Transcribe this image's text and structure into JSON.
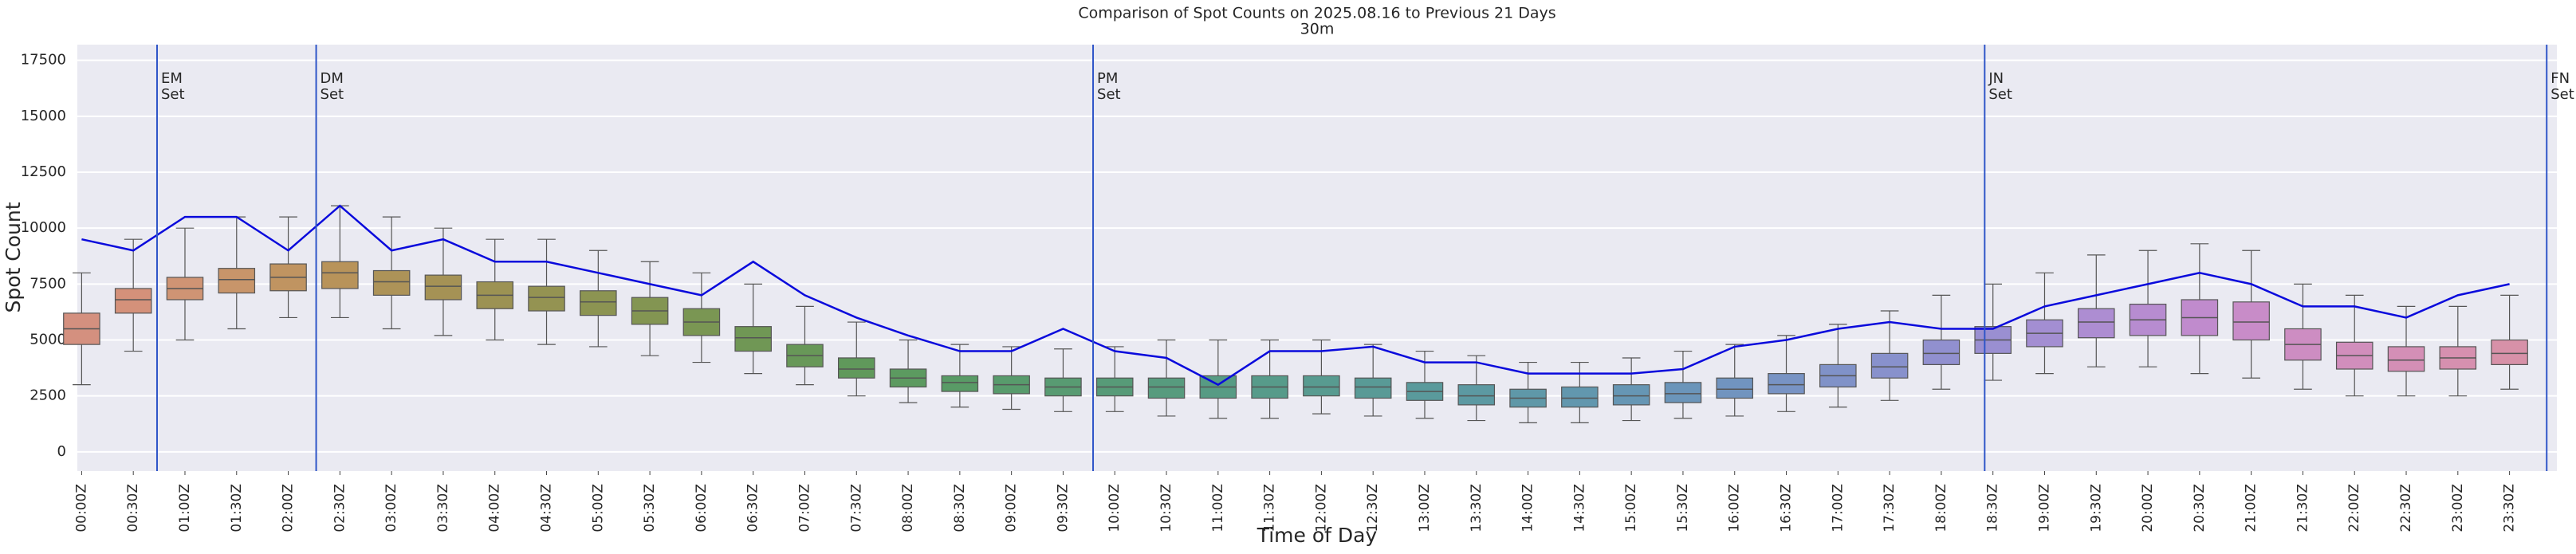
{
  "chart_data": {
    "type": "box",
    "title": "Comparison of Spot Counts on 2025.08.16 to Previous 21 Days",
    "subtitle": "30m",
    "x_label": "Time of Day",
    "y_label": "Spot Count",
    "categories": [
      "00:00Z",
      "00:30Z",
      "01:00Z",
      "01:30Z",
      "02:00Z",
      "02:30Z",
      "03:00Z",
      "03:30Z",
      "04:00Z",
      "04:30Z",
      "05:00Z",
      "05:30Z",
      "06:00Z",
      "06:30Z",
      "07:00Z",
      "07:30Z",
      "08:00Z",
      "08:30Z",
      "09:00Z",
      "09:30Z",
      "10:00Z",
      "10:30Z",
      "11:00Z",
      "11:30Z",
      "12:00Z",
      "12:30Z",
      "13:00Z",
      "13:30Z",
      "14:00Z",
      "14:30Z",
      "15:00Z",
      "15:30Z",
      "16:00Z",
      "16:30Z",
      "17:00Z",
      "17:30Z",
      "18:00Z",
      "18:30Z",
      "19:00Z",
      "19:30Z",
      "20:00Z",
      "20:30Z",
      "21:00Z",
      "21:30Z",
      "22:00Z",
      "22:30Z",
      "23:00Z",
      "23:30Z"
    ],
    "median": [
      5500,
      6800,
      7300,
      7700,
      7800,
      8000,
      7600,
      7400,
      7000,
      6900,
      6700,
      6300,
      5800,
      5100,
      4300,
      3700,
      3300,
      3100,
      3000,
      2900,
      2900,
      2900,
      2900,
      2900,
      2900,
      2900,
      2700,
      2500,
      2400,
      2400,
      2500,
      2600,
      2800,
      3000,
      3400,
      3800,
      4400,
      5000,
      5300,
      5800,
      5900,
      6000,
      5800,
      4800,
      4300,
      4100,
      4200,
      4400
    ],
    "q1": [
      4800,
      6200,
      6800,
      7100,
      7200,
      7300,
      7000,
      6800,
      6400,
      6300,
      6100,
      5700,
      5200,
      4500,
      3800,
      3300,
      2900,
      2700,
      2600,
      2500,
      2500,
      2400,
      2400,
      2400,
      2500,
      2400,
      2300,
      2100,
      2000,
      2000,
      2100,
      2200,
      2400,
      2600,
      2900,
      3300,
      3900,
      4400,
      4700,
      5100,
      5200,
      5200,
      5000,
      4100,
      3700,
      3600,
      3700,
      3900
    ],
    "q3": [
      6200,
      7300,
      7800,
      8200,
      8400,
      8500,
      8100,
      7900,
      7600,
      7400,
      7200,
      6900,
      6400,
      5600,
      4800,
      4200,
      3700,
      3400,
      3400,
      3300,
      3300,
      3300,
      3400,
      3400,
      3400,
      3300,
      3100,
      3000,
      2800,
      2900,
      3000,
      3100,
      3300,
      3500,
      3900,
      4400,
      5000,
      5600,
      5900,
      6400,
      6600,
      6800,
      6700,
      5500,
      4900,
      4700,
      4700,
      5000
    ],
    "whisker_low": [
      3000,
      4500,
      5000,
      5500,
      6000,
      6000,
      5500,
      5200,
      5000,
      4800,
      4700,
      4300,
      4000,
      3500,
      3000,
      2500,
      2200,
      2000,
      1900,
      1800,
      1800,
      1600,
      1500,
      1500,
      1700,
      1600,
      1500,
      1400,
      1300,
      1300,
      1400,
      1500,
      1600,
      1800,
      2000,
      2300,
      2800,
      3200,
      3500,
      3800,
      3800,
      3500,
      3300,
      2800,
      2500,
      2500,
      2500,
      2800
    ],
    "whisker_high": [
      8000,
      9500,
      10000,
      10500,
      10500,
      11000,
      10500,
      10000,
      9500,
      9500,
      9000,
      8500,
      8000,
      7500,
      6500,
      5800,
      5000,
      4800,
      4700,
      4600,
      4700,
      5000,
      5000,
      5000,
      5000,
      4800,
      4500,
      4300,
      4000,
      4000,
      4200,
      4500,
      4800,
      5200,
      5700,
      6300,
      7000,
      7500,
      8000,
      8800,
      9000,
      9300,
      9000,
      7500,
      7000,
      6500,
      6500,
      7000
    ],
    "colors": [
      "#d4907f",
      "#d4917a",
      "#cf9474",
      "#c8956a",
      "#c09461",
      "#b8935a",
      "#ad9358",
      "#a59255",
      "#9c9253",
      "#949352",
      "#8c9452",
      "#839552",
      "#7a9653",
      "#709755",
      "#689858",
      "#60995b",
      "#5c9a60",
      "#599b66",
      "#589b6c",
      "#589b72",
      "#579b78",
      "#579b7e",
      "#579b84",
      "#579b8a",
      "#589b90",
      "#599a96",
      "#5a9a9c",
      "#5c99a2",
      "#5f98a8",
      "#6297ae",
      "#6696b4",
      "#6b95ba",
      "#7194bf",
      "#7893c4",
      "#8092c8",
      "#8891cc",
      "#9190cf",
      "#9a8fd1",
      "#a38ed2",
      "#ad8dd2",
      "#b78cd0",
      "#c08bcd",
      "#c88cc8",
      "#cd8dc2",
      "#d18ebc",
      "#d48fb6",
      "#d690af",
      "#d791a8"
    ],
    "line": {
      "color": "#0a0adc",
      "values": [
        9500,
        9000,
        10500,
        10500,
        9000,
        11000,
        9000,
        9500,
        8500,
        8500,
        8000,
        7500,
        7000,
        8500,
        7000,
        6000,
        5200,
        4500,
        4500,
        5500,
        4500,
        4200,
        3000,
        4500,
        4500,
        4700,
        4000,
        4000,
        3500,
        3500,
        3500,
        3700,
        4700,
        5000,
        5500,
        5800,
        5500,
        5500,
        6500,
        7000,
        7500,
        8000,
        7500,
        6500,
        6500,
        6000,
        7000,
        7500
      ]
    },
    "events": [
      {
        "hour": 0.73,
        "label": [
          "EM",
          "Set"
        ]
      },
      {
        "hour": 2.27,
        "label": [
          "DM",
          "Set"
        ]
      },
      {
        "hour": 9.79,
        "label": [
          "PM",
          "Set"
        ]
      },
      {
        "hour": 18.42,
        "label": [
          "JN",
          "Set"
        ]
      },
      {
        "hour": 23.86,
        "label": [
          "FN",
          "Set"
        ]
      }
    ],
    "event_color": "#2f55c8",
    "ylim": [
      -860,
      18200
    ],
    "yticks": [
      0,
      2500,
      5000,
      7500,
      10000,
      12500,
      15000,
      17500
    ],
    "grid": true,
    "background": "#eaeaf2"
  }
}
